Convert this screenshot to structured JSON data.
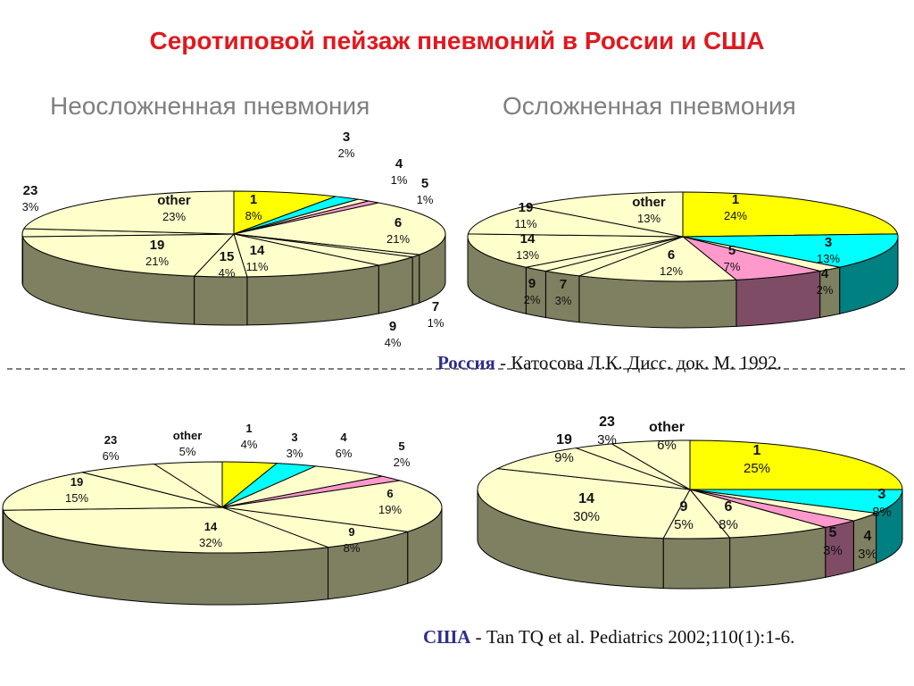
{
  "title": "Серотиповой пейзаж пневмоний в России и США",
  "headings": {
    "left": "Неосложненная пневмония",
    "right": "Осложненная пневмония"
  },
  "sources": {
    "russia": {
      "country": "Россия",
      "text": " - Катосова Л.К. Дисс. док. М. 1992."
    },
    "usa": {
      "country": "США",
      "text": " - Tan TQ et al. Pediatrics 2002;110(1):1-6."
    }
  },
  "colors": {
    "title": "#e0191f",
    "heading": "#7f7f7f",
    "pie_top_default": "#ffffcc",
    "pie_side_default": "#7f7f61",
    "serotype_1": "#ffff00",
    "serotype_3": "#00ffff",
    "serotype_5": "#ff99cc",
    "serotype_5_side": "#7f4c66",
    "serotype_3_side": "#008080",
    "outline": "#000000"
  },
  "chart_data": [
    {
      "type": "pie",
      "id": "russia-uncomplicated",
      "country": "Россия",
      "group": "Неосложненная пневмония",
      "unit": "%",
      "slices": [
        {
          "label": "1",
          "value": 8,
          "text": "8%",
          "color": "#ffff00"
        },
        {
          "label": "3",
          "value": 2,
          "text": "2%",
          "color": "#00ffff"
        },
        {
          "label": "4",
          "value": 1,
          "text": "1%",
          "color": "#ffffcc"
        },
        {
          "label": "5",
          "value": 1,
          "text": "1%",
          "color": "#ff99cc"
        },
        {
          "label": "6",
          "value": 21,
          "text": "21%",
          "color": "#ffffcc"
        },
        {
          "label": "7",
          "value": 1,
          "text": "1%",
          "color": "#ffffcc"
        },
        {
          "label": "9",
          "value": 4,
          "text": "4%",
          "color": "#ffffcc"
        },
        {
          "label": "14",
          "value": 11,
          "text": "11%",
          "color": "#ffffcc"
        },
        {
          "label": "15",
          "value": 4,
          "text": "4%",
          "color": "#ffffcc"
        },
        {
          "label": "19",
          "value": 21,
          "text": "21%",
          "color": "#ffffcc"
        },
        {
          "label": "23",
          "value": 3,
          "text": "3%",
          "color": "#ffffcc"
        },
        {
          "label": "other",
          "value": 23,
          "text": "23%",
          "color": "#ffffcc"
        }
      ]
    },
    {
      "type": "pie",
      "id": "russia-complicated",
      "country": "Россия",
      "group": "Осложненная пневмония",
      "unit": "%",
      "slices": [
        {
          "label": "1",
          "value": 24,
          "text": "24%",
          "color": "#ffff00"
        },
        {
          "label": "3",
          "value": 13,
          "text": "13%",
          "color": "#00ffff"
        },
        {
          "label": "4",
          "value": 2,
          "text": "2%",
          "color": "#ffffcc"
        },
        {
          "label": "5",
          "value": 7,
          "text": "7%",
          "color": "#ff99cc"
        },
        {
          "label": "6",
          "value": 12,
          "text": "12%",
          "color": "#ffffcc"
        },
        {
          "label": "7",
          "value": 3,
          "text": "3%",
          "color": "#ffffcc"
        },
        {
          "label": "9",
          "value": 2,
          "text": "2%",
          "color": "#ffffcc"
        },
        {
          "label": "14",
          "value": 13,
          "text": "13%",
          "color": "#ffffcc"
        },
        {
          "label": "19",
          "value": 11,
          "text": "11%",
          "color": "#ffffcc"
        },
        {
          "label": "other",
          "value": 13,
          "text": "13%",
          "color": "#ffffcc"
        }
      ]
    },
    {
      "type": "pie",
      "id": "usa-uncomplicated",
      "country": "США",
      "group": "Неосложненная пневмония",
      "unit": "%",
      "slices": [
        {
          "label": "1",
          "value": 4,
          "text": "4%",
          "color": "#ffff00"
        },
        {
          "label": "3",
          "value": 3,
          "text": "3%",
          "color": "#00ffff"
        },
        {
          "label": "4",
          "value": 6,
          "text": "6%",
          "color": "#ffffcc"
        },
        {
          "label": "5",
          "value": 2,
          "text": "2%",
          "color": "#ff99cc"
        },
        {
          "label": "6",
          "value": 19,
          "text": "19%",
          "color": "#ffffcc"
        },
        {
          "label": "9",
          "value": 8,
          "text": "8%",
          "color": "#ffffcc"
        },
        {
          "label": "14",
          "value": 32,
          "text": "32%",
          "color": "#ffffcc"
        },
        {
          "label": "19",
          "value": 15,
          "text": "15%",
          "color": "#ffffcc"
        },
        {
          "label": "23",
          "value": 6,
          "text": "6%",
          "color": "#ffffcc"
        },
        {
          "label": "other",
          "value": 5,
          "text": "5%",
          "color": "#ffffcc"
        }
      ]
    },
    {
      "type": "pie",
      "id": "usa-complicated",
      "country": "США",
      "group": "Осложненная пневмония",
      "unit": "%",
      "slices": [
        {
          "label": "1",
          "value": 25,
          "text": "25%",
          "color": "#ffff00"
        },
        {
          "label": "3",
          "value": 8,
          "text": "8%",
          "color": "#00ffff"
        },
        {
          "label": "4",
          "value": 3,
          "text": "3%",
          "color": "#ffffcc"
        },
        {
          "label": "5",
          "value": 3,
          "text": "3%",
          "color": "#ff99cc"
        },
        {
          "label": "6",
          "value": 8,
          "text": "8%",
          "color": "#ffffcc"
        },
        {
          "label": "9",
          "value": 5,
          "text": "5%",
          "color": "#ffffcc"
        },
        {
          "label": "14",
          "value": 30,
          "text": "30%",
          "color": "#ffffcc"
        },
        {
          "label": "19",
          "value": 9,
          "text": "9%",
          "color": "#ffffcc"
        },
        {
          "label": "23",
          "value": 3,
          "text": "3%",
          "color": "#ffffcc"
        },
        {
          "label": "other",
          "value": 6,
          "text": "6%",
          "color": "#ffffcc"
        }
      ]
    }
  ]
}
